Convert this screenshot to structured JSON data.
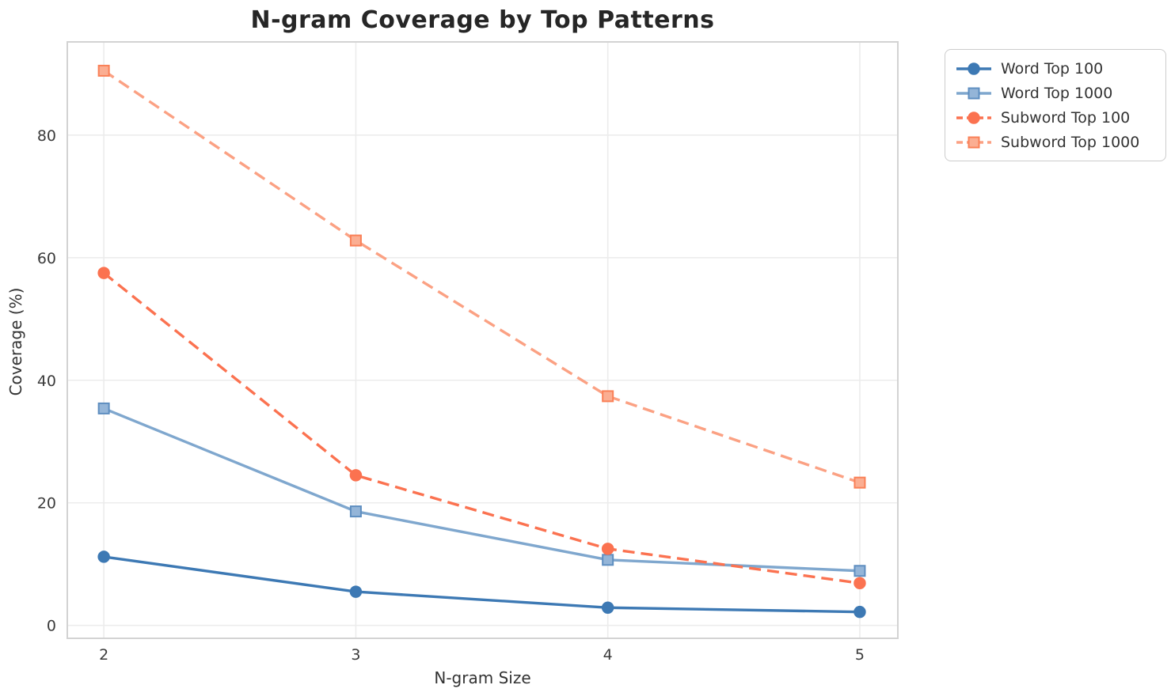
{
  "chart_data": {
    "type": "line",
    "title": "N-gram Coverage by Top Patterns",
    "xlabel": "N-gram Size",
    "ylabel": "Coverage (%)",
    "x": [
      2,
      3,
      4,
      5
    ],
    "x_ticks": [
      2,
      3,
      4,
      5
    ],
    "y_ticks": [
      0,
      20,
      40,
      60,
      80
    ],
    "xlim": [
      1.855,
      5.151
    ],
    "ylim": [
      -2.1,
      95.2
    ],
    "grid": true,
    "legend_position": "outside-top-right",
    "series": [
      {
        "name": "Word Top 100",
        "values": [
          11.2,
          5.5,
          2.9,
          2.2
        ],
        "color": "#3D79B4",
        "marker": "circle",
        "marker_fill": "#3D79B4",
        "marker_edge": "#3D79B4",
        "dashed": false
      },
      {
        "name": "Word Top 1000",
        "values": [
          35.4,
          18.6,
          10.7,
          8.9
        ],
        "color": "#7FA7CE",
        "marker": "square",
        "marker_fill": "#94B5D8",
        "marker_edge": "#5E8EC0",
        "dashed": false
      },
      {
        "name": "Subword Top 100",
        "values": [
          57.5,
          24.5,
          12.5,
          6.9
        ],
        "color": "#FB7250",
        "marker": "circle",
        "marker_fill": "#FB7250",
        "marker_edge": "#FB7250",
        "dashed": true
      },
      {
        "name": "Subword Top 1000",
        "values": [
          90.5,
          62.8,
          37.4,
          23.3
        ],
        "color": "#FBA183",
        "marker": "square",
        "marker_fill": "#FBAE92",
        "marker_edge": "#FA8057",
        "dashed": true
      }
    ]
  }
}
